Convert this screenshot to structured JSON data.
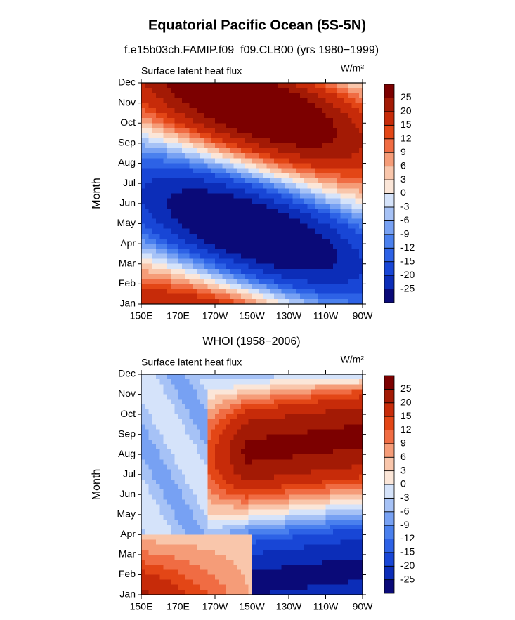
{
  "chart_data": [
    {
      "type": "contour",
      "title": "Equatorial Pacific Ocean (5S-5N)",
      "subtitle": "f.e15b03ch.FAMIP.f09_f09.CLB00 (yrs 1980−1999)",
      "left_label": "Surface latent heat flux",
      "units": "W/m²",
      "ylabel": "Month",
      "categories": [
        "Jan",
        "Feb",
        "Mar",
        "Apr",
        "May",
        "Jun",
        "Jul",
        "Aug",
        "Sep",
        "Oct",
        "Nov",
        "Dec"
      ],
      "xlim": [
        150,
        270
      ],
      "xticks": [
        {
          "value": 150,
          "label": "150E"
        },
        {
          "value": 170,
          "label": "170E"
        },
        {
          "value": 190,
          "label": "170W"
        },
        {
          "value": 210,
          "label": "150W"
        },
        {
          "value": 230,
          "label": "130W"
        },
        {
          "value": 250,
          "label": "110W"
        },
        {
          "value": 270,
          "label": "90W"
        }
      ],
      "levels": [
        -25,
        -20,
        -15,
        -12,
        -9,
        -6,
        -3,
        0,
        3,
        6,
        9,
        12,
        15,
        20,
        25
      ],
      "colors": [
        "#0a0a78",
        "#0c2db8",
        "#1846d6",
        "#2d62e6",
        "#4a80ee",
        "#77a1f3",
        "#a6c2f6",
        "#d5e3fa",
        "#fbe6d8",
        "#f9c6ab",
        "#f59c78",
        "#f06c43",
        "#e34616",
        "#c72b09",
        "#a31a05",
        "#7c0000"
      ]
    },
    {
      "type": "contour",
      "subtitle": "WHOI (1958−2006)",
      "left_label": "Surface latent heat flux",
      "units": "W/m²",
      "ylabel": "Month",
      "categories": [
        "Jan",
        "Feb",
        "Mar",
        "Apr",
        "May",
        "Jun",
        "Jul",
        "Aug",
        "Sep",
        "Oct",
        "Nov",
        "Dec"
      ],
      "xlim": [
        150,
        270
      ],
      "xticks": [
        {
          "value": 150,
          "label": "150E"
        },
        {
          "value": 170,
          "label": "170E"
        },
        {
          "value": 190,
          "label": "170W"
        },
        {
          "value": 210,
          "label": "150W"
        },
        {
          "value": 230,
          "label": "130W"
        },
        {
          "value": 250,
          "label": "110W"
        },
        {
          "value": 270,
          "label": "90W"
        }
      ],
      "levels": [
        -25,
        -20,
        -15,
        -12,
        -9,
        -6,
        -3,
        0,
        3,
        6,
        9,
        12,
        15,
        20,
        25
      ],
      "colors": [
        "#0a0a78",
        "#0c2db8",
        "#1846d6",
        "#2d62e6",
        "#4a80ee",
        "#77a1f3",
        "#a6c2f6",
        "#d5e3fa",
        "#fbe6d8",
        "#f9c6ab",
        "#f59c78",
        "#f06c43",
        "#e34616",
        "#c72b09",
        "#a31a05",
        "#7c0000"
      ]
    }
  ]
}
